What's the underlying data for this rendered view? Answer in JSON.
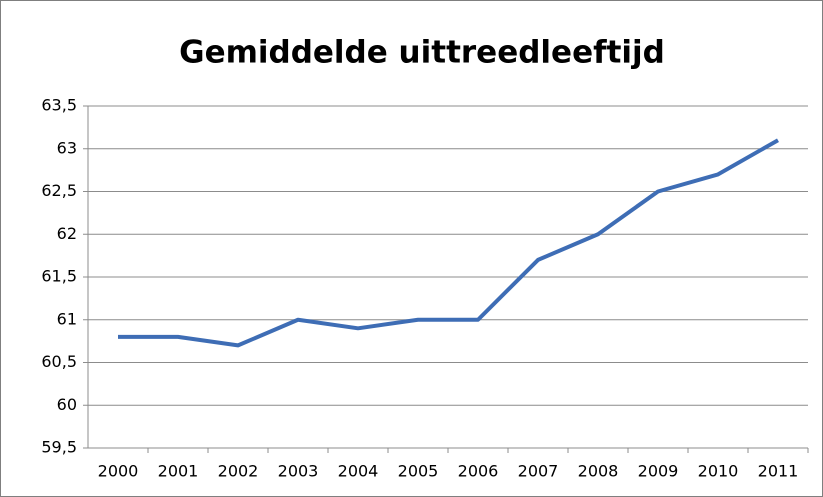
{
  "chart_data": {
    "type": "line",
    "title": "Gemiddelde uittreedleeftijd",
    "categories": [
      "2000",
      "2001",
      "2002",
      "2003",
      "2004",
      "2005",
      "2006",
      "2007",
      "2008",
      "2009",
      "2010",
      "2011"
    ],
    "values": [
      60.8,
      60.8,
      60.7,
      61.0,
      60.9,
      61.0,
      61.0,
      61.7,
      62.0,
      62.5,
      62.7,
      63.1
    ],
    "color": "#3e6db5",
    "ylim": [
      59.5,
      63.5
    ],
    "yticks": [
      {
        "value": 59.5,
        "label": "59,5"
      },
      60,
      {
        "value": 60.5,
        "label": "60,5"
      },
      61,
      {
        "value": 61.5,
        "label": "61,5"
      },
      62,
      {
        "value": 62.5,
        "label": "62,5"
      },
      63,
      {
        "value": 63.5,
        "label": "63,5"
      }
    ],
    "grid": true
  }
}
